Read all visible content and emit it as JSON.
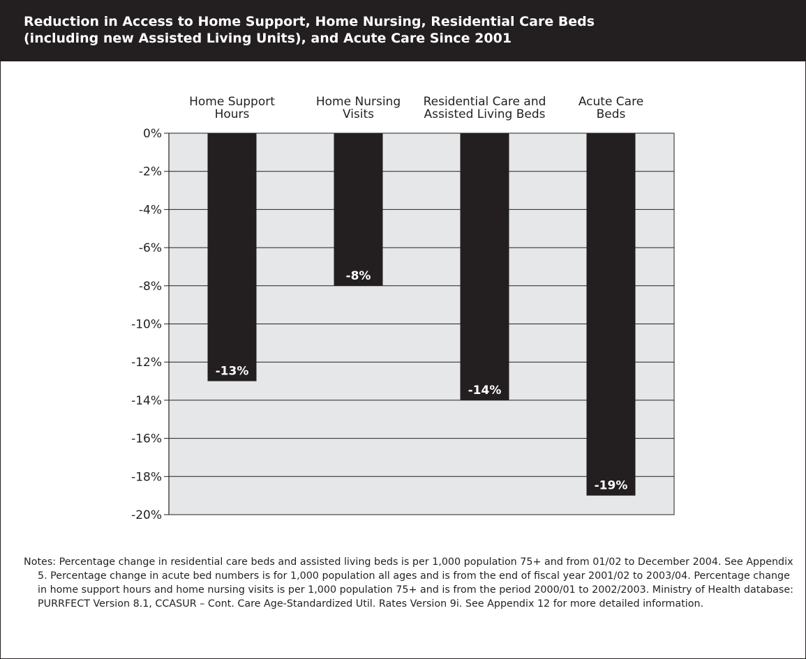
{
  "header": {
    "title_line1": "Reduction in Access to Home Support, Home Nursing, Residential Care Beds",
    "title_line2": "(including new Assisted Living Units), and Acute Care Since 2001"
  },
  "chart_data": {
    "type": "bar",
    "categories": [
      [
        "Home Support",
        "Hours"
      ],
      [
        "Home Nursing",
        "Visits"
      ],
      [
        "Residential Care and",
        "Assisted Living Beds"
      ],
      [
        "Acute Care",
        "Beds"
      ]
    ],
    "values": [
      -13,
      -8,
      -14,
      -19
    ],
    "value_labels": [
      "-13%",
      "-8%",
      "-14%",
      "-19%"
    ],
    "ylim": [
      -20,
      0
    ],
    "yticks": [
      0,
      -2,
      -4,
      -6,
      -8,
      -10,
      -12,
      -14,
      -16,
      -18,
      -20
    ],
    "ytick_labels": [
      "0%",
      "-2%",
      "-4%",
      "-6%",
      "-8%",
      "-10%",
      "-12%",
      "-14%",
      "-16%",
      "-18%",
      "-20%"
    ],
    "category_labels_position": "top",
    "grid": true,
    "bar_color": "#231f20",
    "plot_background": "#e6e7e8"
  },
  "notes": "Notes: Percentage change in residential care beds and assisted living beds is per 1,000 population 75+ and from 01/02 to December 2004. See Appendix 5. Percentage change in acute bed numbers is for 1,000 population all ages and is from the end of fiscal year 2001/02 to 2003/04. Percentage change in home support hours and home nursing visits is per 1,000 population 75+ and is from the period 2000/01 to 2002/2003. Ministry of Health database: PURRFECT Version 8.1, CCASUR – Cont. Care Age-Standardized Util. Rates Version 9i. See Appendix 12 for more detailed information."
}
